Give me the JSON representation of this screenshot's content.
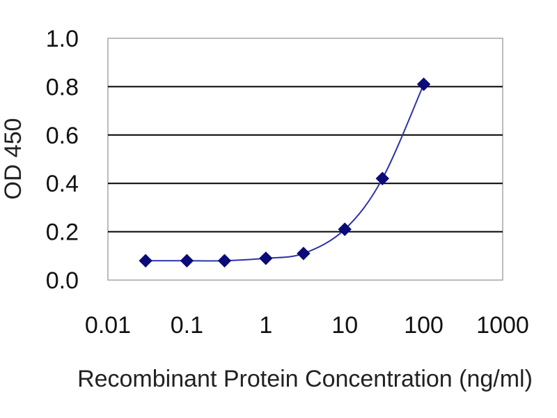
{
  "chart_data": {
    "type": "scatter",
    "title": "",
    "xlabel": "Recombinant Protein Concentration (ng/ml)",
    "ylabel": "OD 450",
    "x_scale": "log",
    "xlim": [
      0.01,
      1000
    ],
    "ylim": [
      0.0,
      1.0
    ],
    "x_tick_labels": [
      "0.01",
      "0.1",
      "1",
      "10",
      "100",
      "1000"
    ],
    "y_tick_labels": [
      "0.0",
      "0.2",
      "0.4",
      "0.6",
      "0.8",
      "1.0"
    ],
    "grid": "horizontal",
    "legend": "none",
    "series": [
      {
        "x": [
          0.03,
          0.1,
          0.3,
          1,
          3,
          10,
          30,
          100
        ],
        "y": [
          0.08,
          0.08,
          0.08,
          0.09,
          0.11,
          0.21,
          0.42,
          0.81
        ]
      }
    ],
    "colors": {
      "marker": "#0a0a78",
      "line": "#2b33a8",
      "grid": "#000000",
      "plot_border": "#a6a6a6"
    }
  }
}
